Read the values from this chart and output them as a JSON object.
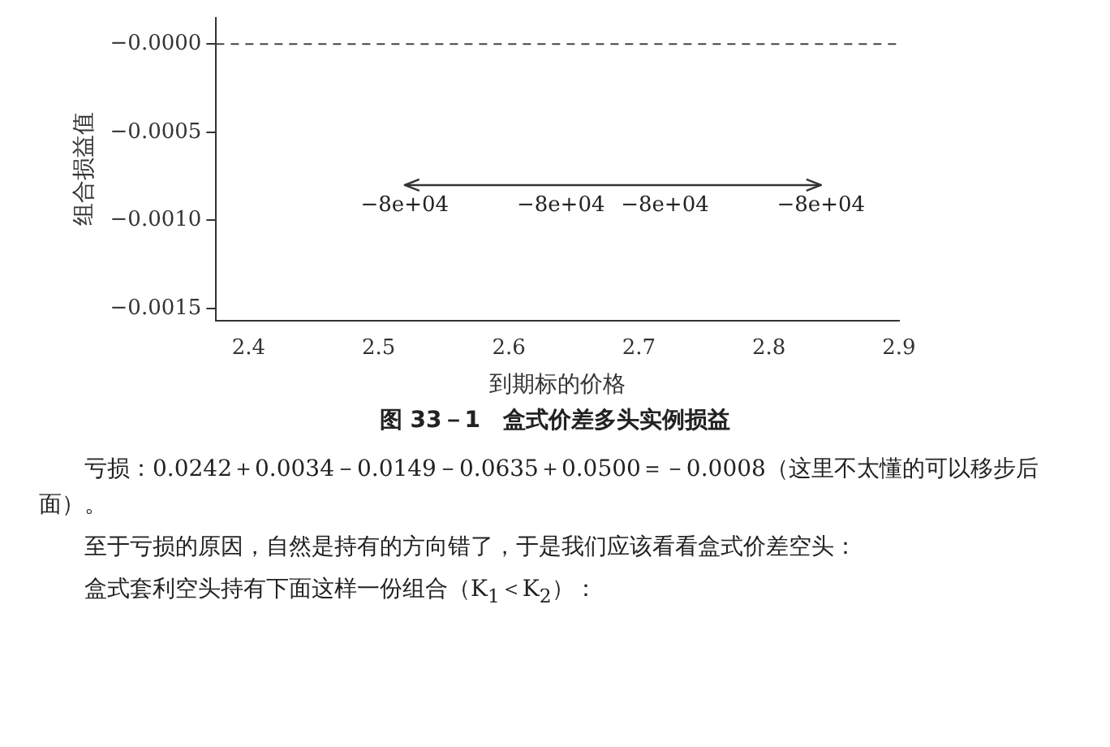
{
  "chart_data": {
    "type": "line",
    "title": "图 33－1　盒式价差多头实例损益",
    "xlabel": "到期标的价格",
    "ylabel": "组合损益值",
    "series": [
      {
        "x": [
          2.52,
          2.84
        ],
        "values": [
          -0.0008,
          -0.0008
        ],
        "color": "#333333"
      }
    ],
    "xlim": [
      2.375,
      2.9
    ],
    "xticks": [
      2.4,
      2.5,
      2.6,
      2.7,
      2.8,
      2.9
    ],
    "ylim": [
      -0.00157,
      0.00015
    ],
    "yticks": [
      {
        "value": 0,
        "label": "−0.0000"
      },
      {
        "value": -0.0005,
        "label": "−0.0005"
      },
      {
        "value": -0.001,
        "label": "−0.0010"
      },
      {
        "value": -0.0015,
        "label": "−0.0015"
      }
    ],
    "ref_lines": [
      {
        "axis": "y",
        "value": 0,
        "color": "#444444",
        "line_style": "dashed"
      }
    ],
    "annotations": [
      {
        "text": "−8e+04",
        "x": 2.52,
        "y": -0.0008
      },
      {
        "text": "−8e+04",
        "x": 2.64,
        "y": -0.0008
      },
      {
        "text": "−8e+04",
        "x": 2.72,
        "y": -0.0008
      },
      {
        "text": "−8e+04",
        "x": 2.84,
        "y": -0.0008
      },
      "亏损：0.0242＋0.0034－0.0149－0.0635＋0.0500＝－0.0008（这里不太懂的可以移步后面）。",
      "至于亏损的原因，自然是持有的方向错了，于是我们应该看看盒式价差空头：",
      "盒式套利空头持有下面这样一份组合（K$_{1}$＜K$_{2}$）："
    ],
    "grid": false,
    "legend": false,
    "marker": "none",
    "line_style": "solid"
  }
}
